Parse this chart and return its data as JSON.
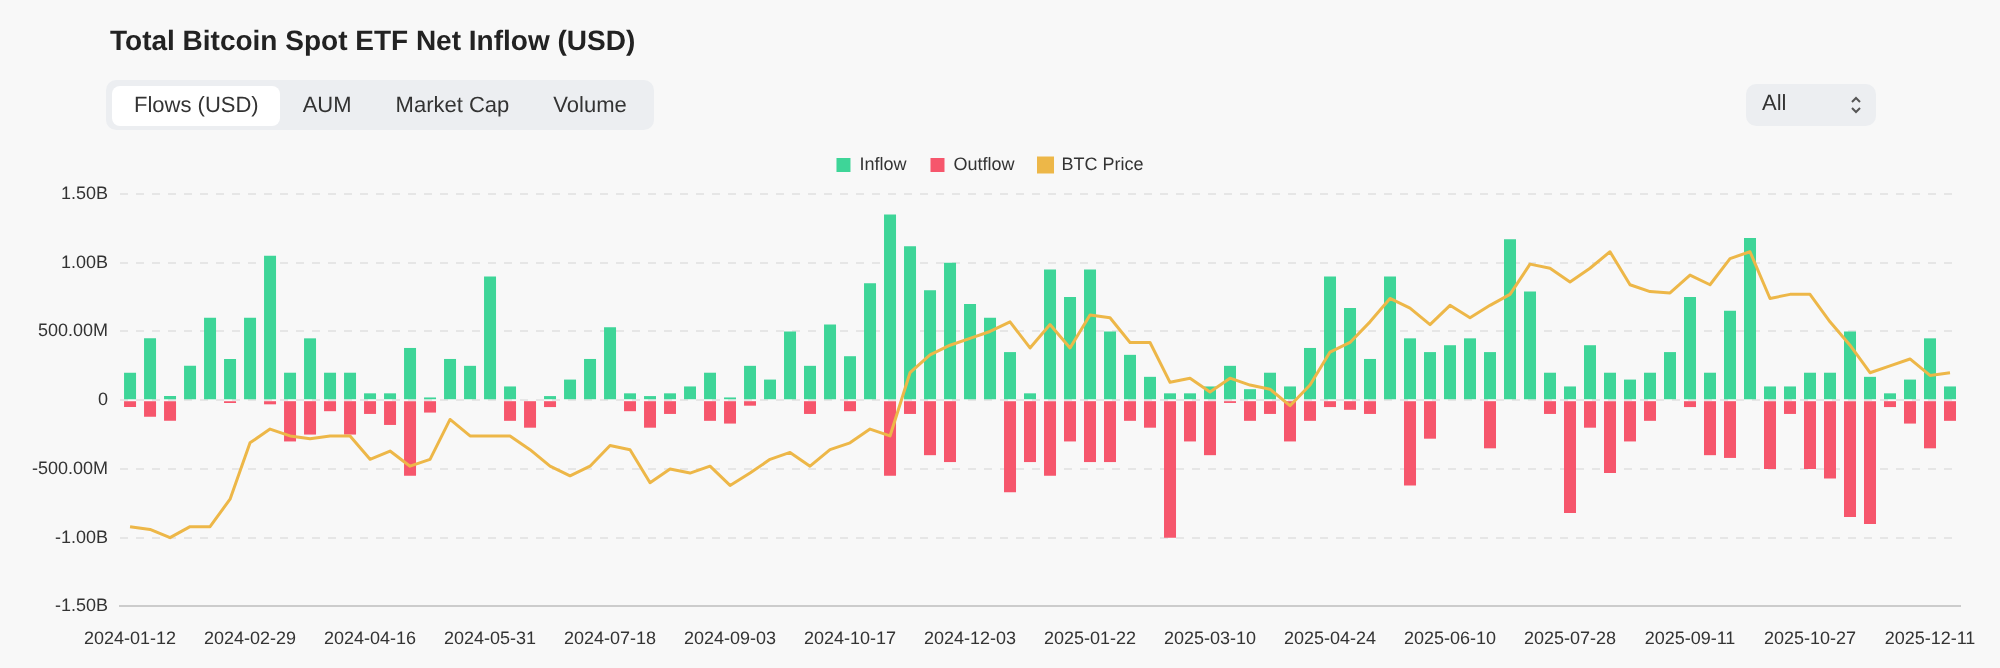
{
  "chart_data": {
    "type": "bar",
    "title": "Total Bitcoin Spot ETF Net Inflow (USD)",
    "annotations": [
      "Flows (USD)",
      "AUM",
      "Market Cap",
      "Volume",
      "All"
    ],
    "categories": [
      "2024-01-12",
      null,
      null,
      null,
      null,
      null,
      "2024-02-29",
      null,
      null,
      null,
      null,
      null,
      "2024-04-16",
      null,
      null,
      null,
      null,
      null,
      "2024-05-31",
      null,
      null,
      null,
      null,
      null,
      "2024-07-18",
      null,
      null,
      null,
      null,
      null,
      "2024-09-03",
      null,
      null,
      null,
      null,
      null,
      "2024-10-17",
      null,
      null,
      null,
      null,
      null,
      "2024-12-03",
      null,
      null,
      null,
      null,
      null,
      "2025-01-22",
      null,
      null,
      null,
      null,
      null,
      "2025-03-10",
      null,
      null,
      null,
      null,
      null,
      "2025-04-24",
      null,
      null,
      null,
      null,
      null,
      "2025-06-10",
      null,
      null,
      null,
      null,
      null,
      "2025-07-28",
      null,
      null,
      null,
      null,
      null,
      "2025-09-11",
      null,
      null,
      null,
      null,
      null,
      "2025-10-27",
      null,
      null,
      null,
      null,
      null,
      "2025-12-11",
      null
    ],
    "stacked": true,
    "series": [
      {
        "name": "Inflow",
        "color": "#3ed598",
        "values": [
          200000000.0,
          450000000.0,
          30000000.0,
          250000000.0,
          600000000.0,
          300000000.0,
          600000000.0,
          1050000000.0,
          200000000.0,
          450000000.0,
          200000000.0,
          200000000.0,
          50000000.0,
          50000000.0,
          380000000.0,
          20000000.0,
          300000000.0,
          250000000.0,
          900000000.0,
          100000000.0,
          null,
          30000000.0,
          150000000.0,
          300000000.0,
          530000000.0,
          50000000.0,
          30000000.0,
          50000000.0,
          100000000.0,
          200000000.0,
          20000000.0,
          250000000.0,
          150000000.0,
          500000000.0,
          250000000.0,
          550000000.0,
          320000000.0,
          850000000.0,
          1350000000.0,
          1120000000.0,
          800000000.0,
          1000000000.0,
          700000000.0,
          600000000.0,
          350000000.0,
          50000000.0,
          950000000.0,
          750000000.0,
          950000000.0,
          500000000.0,
          330000000.0,
          170000000.0,
          50000000.0,
          50000000.0,
          100000000.0,
          250000000.0,
          80000000.0,
          200000000.0,
          100000000.0,
          380000000.0,
          900000000.0,
          670000000.0,
          300000000.0,
          900000000.0,
          450000000.0,
          350000000.0,
          400000000.0,
          450000000.0,
          350000000.0,
          1170000000.0,
          790000000.0,
          200000000.0,
          100000000.0,
          400000000.0,
          200000000.0,
          150000000.0,
          200000000.0,
          350000000.0,
          750000000.0,
          200000000.0,
          650000000.0,
          1180000000.0,
          100000000.0,
          100000000.0,
          200000000.0,
          200000000.0,
          500000000.0,
          170000000.0,
          50000000.0,
          150000000.0,
          450000000.0,
          100000000.0
        ]
      },
      {
        "name": "Outflow",
        "color": "#f6566c",
        "values": [
          -50000000.0,
          -120000000.0,
          -150000000.0,
          null,
          null,
          -20000000.0,
          null,
          -30000000.0,
          -300000000.0,
          -250000000.0,
          -80000000.0,
          -250000000.0,
          -100000000.0,
          -180000000.0,
          -550000000.0,
          -90000000.0,
          null,
          null,
          null,
          -150000000.0,
          -200000000.0,
          -50000000.0,
          null,
          null,
          null,
          -80000000.0,
          -200000000.0,
          -100000000.0,
          null,
          -150000000.0,
          -170000000.0,
          -40000000.0,
          null,
          null,
          -100000000.0,
          null,
          -80000000.0,
          null,
          -550000000.0,
          -100000000.0,
          -400000000.0,
          -450000000.0,
          null,
          null,
          -670000000.0,
          -450000000.0,
          -550000000.0,
          -300000000.0,
          -450000000.0,
          -450000000.0,
          -150000000.0,
          -200000000.0,
          -1000000000.0,
          -300000000.0,
          -400000000.0,
          -20000000.0,
          -150000000.0,
          -100000000.0,
          -300000000.0,
          -150000000.0,
          -50000000.0,
          -70000000.0,
          -100000000.0,
          null,
          -620000000.0,
          -280000000.0,
          null,
          null,
          -350000000.0,
          null,
          null,
          -100000000.0,
          -820000000.0,
          -200000000.0,
          -530000000.0,
          -300000000.0,
          -150000000.0,
          null,
          -50000000.0,
          -400000000.0,
          -420000000.0,
          null,
          -500000000.0,
          -100000000.0,
          -500000000.0,
          -570000000.0,
          -850000000.0,
          -900000000.0,
          -50000000.0,
          -170000000.0,
          -350000000.0,
          -150000000.0
        ]
      },
      {
        "name": "BTC Price",
        "type": "line",
        "color": "#edb748",
        "values": [
          -920000000.0,
          -940000000.0,
          -1000000000.0,
          -920000000.0,
          -920000000.0,
          -720000000.0,
          -310000000.0,
          -210000000.0,
          -260000000.0,
          -280000000.0,
          -260000000.0,
          -260000000.0,
          -430000000.0,
          -370000000.0,
          -480000000.0,
          -430000000.0,
          -140000000.0,
          -260000000.0,
          -260000000.0,
          -260000000.0,
          -360000000.0,
          -480000000.0,
          -550000000.0,
          -480000000.0,
          -330000000.0,
          -360000000.0,
          -600000000.0,
          -500000000.0,
          -530000000.0,
          -480000000.0,
          -620000000.0,
          -530000000.0,
          -430000000.0,
          -380000000.0,
          -480000000.0,
          -360000000.0,
          -310000000.0,
          -210000000.0,
          -260000000.0,
          200000000.0,
          330000000.0,
          400000000.0,
          450000000.0,
          500000000.0,
          570000000.0,
          380000000.0,
          550000000.0,
          380000000.0,
          620000000.0,
          600000000.0,
          420000000.0,
          420000000.0,
          130000000.0,
          160000000.0,
          60000000.0,
          160000000.0,
          110000000.0,
          80000000.0,
          -40000000.0,
          110000000.0,
          350000000.0,
          420000000.0,
          570000000.0,
          740000000.0,
          670000000.0,
          550000000.0,
          690000000.0,
          600000000.0,
          690000000.0,
          770000000.0,
          990000000.0,
          960000000.0,
          860000000.0,
          960000000.0,
          1080000000.0,
          840000000.0,
          790000000.0,
          780000000.0,
          910000000.0,
          840000000.0,
          1030000000.0,
          1080000000.0,
          740000000.0,
          770000000.0,
          770000000.0,
          570000000.0,
          400000000.0,
          200000000.0,
          250000000.0,
          300000000.0,
          180000000.0,
          200000000.0
        ]
      }
    ],
    "ylim": [
      -1500000000.0,
      1500000000.0
    ],
    "yticks": [
      {
        "value": -1500000000.0,
        "label": "-1.50B"
      },
      {
        "value": -1000000000.0,
        "label": "-1.00B"
      },
      {
        "value": -500000000.0,
        "label": "-500.00M"
      },
      0,
      {
        "value": 500000000.0,
        "label": "500.00M"
      },
      {
        "value": 1000000000.0,
        "label": "1.00B"
      },
      {
        "value": 1500000000.0,
        "label": "1.50B"
      }
    ],
    "grid": "y",
    "legend": "top",
    "marker": "none",
    "line_style": "solid"
  }
}
